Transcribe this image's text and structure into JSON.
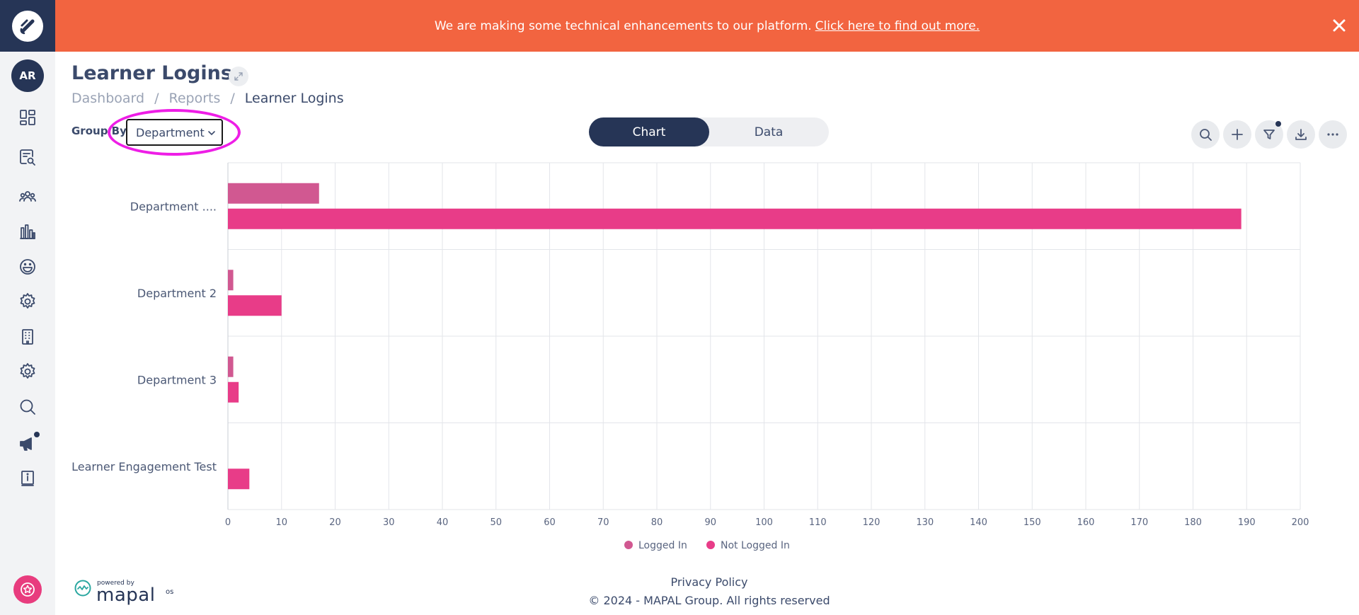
{
  "banner": {
    "message": "We are making some technical enhancements to our platform.",
    "link_text": "Click here to find out more."
  },
  "sidebar": {
    "avatar_initials": "AR",
    "items": [
      {
        "icon": "dashboard-icon"
      },
      {
        "icon": "report-search-icon"
      },
      {
        "icon": "users-icon"
      },
      {
        "icon": "bar-chart-icon"
      },
      {
        "icon": "smiley-icon"
      },
      {
        "icon": "gear-icon"
      },
      {
        "icon": "building-icon"
      },
      {
        "icon": "settings-icon"
      },
      {
        "icon": "search-icon"
      },
      {
        "icon": "megaphone-icon"
      },
      {
        "icon": "info-book-icon"
      }
    ]
  },
  "header": {
    "title": "Learner Logins",
    "breadcrumb": [
      "Dashboard",
      "Reports",
      "Learner Logins"
    ]
  },
  "controls": {
    "group_by_label": "Group By",
    "group_by_value": "Department",
    "view_toggle": [
      "Chart",
      "Data"
    ],
    "active_view": "Chart",
    "tools": [
      "search-icon",
      "plus-icon",
      "filter-icon",
      "download-icon",
      "more-icon"
    ]
  },
  "colors": {
    "logged_in": "#d15891",
    "not_logged_in": "#e83c88",
    "sidebar_dark": "#263556",
    "banner": "#f26440",
    "highlight": "#ee1ee6"
  },
  "chart_data": {
    "type": "bar",
    "orientation": "horizontal",
    "categories": [
      "Department ....",
      "Department 2",
      "Department 3",
      "Learner Engagement Test"
    ],
    "series": [
      {
        "name": "Logged In",
        "values": [
          17,
          1,
          1,
          0
        ]
      },
      {
        "name": "Not Logged In",
        "values": [
          189,
          10,
          2,
          4
        ]
      }
    ],
    "xlim": [
      0,
      200
    ],
    "xticks": [
      0,
      10,
      20,
      30,
      40,
      50,
      60,
      70,
      80,
      90,
      100,
      110,
      120,
      130,
      140,
      150,
      160,
      170,
      180,
      190,
      200
    ],
    "grid": true,
    "legend": "bottom"
  },
  "footer": {
    "powered_by": "powered by",
    "brand": "mapal",
    "brand_suffix": "os",
    "privacy": "Privacy Policy",
    "copyright": "© 2024 - MAPAL Group. All rights reserved"
  }
}
